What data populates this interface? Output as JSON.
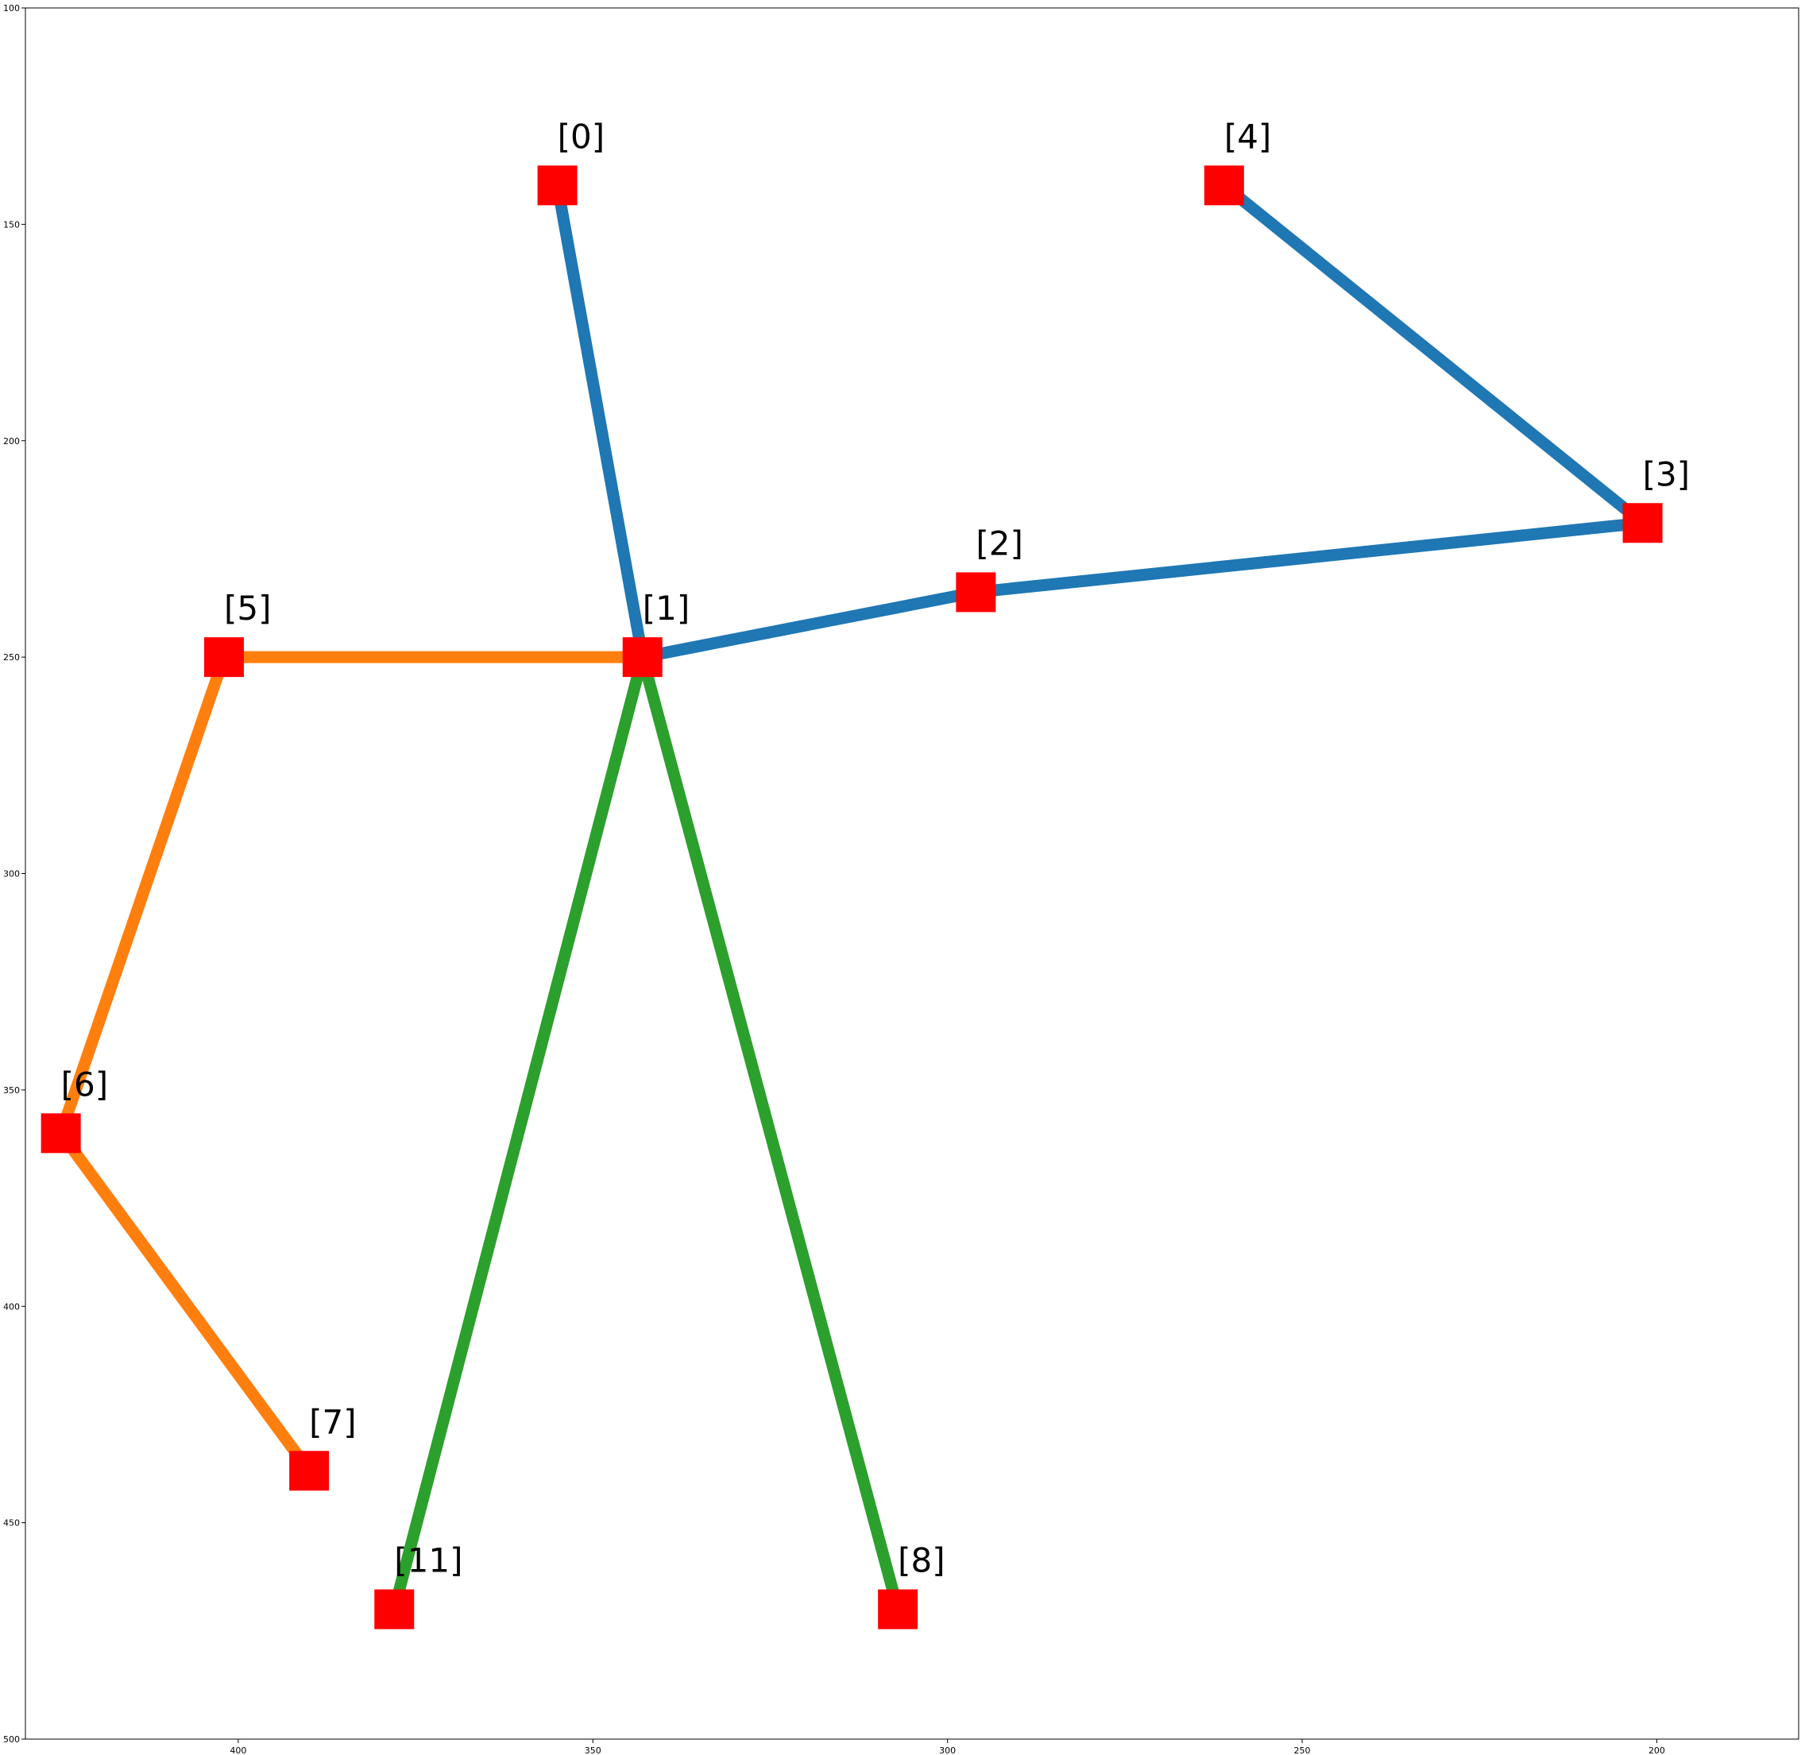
{
  "chart_data": {
    "type": "line",
    "title": "",
    "xlabel": "",
    "ylabel": "",
    "xlim": [
      430,
      180
    ],
    "ylim": [
      500,
      100
    ],
    "x_inverted": true,
    "y_inverted": true,
    "grid": false,
    "x_ticks": [
      400,
      350,
      300,
      250,
      200
    ],
    "y_ticks": [
      100,
      150,
      200,
      250,
      300,
      350,
      400,
      450,
      500
    ],
    "marker": {
      "shape": "square",
      "color": "#ff0000"
    },
    "points": [
      {
        "id": 0,
        "label": "[0]",
        "x": 355,
        "y": 141
      },
      {
        "id": 1,
        "label": "[1]",
        "x": 343,
        "y": 250
      },
      {
        "id": 2,
        "label": "[2]",
        "x": 296,
        "y": 235
      },
      {
        "id": 3,
        "label": "[3]",
        "x": 202,
        "y": 219
      },
      {
        "id": 4,
        "label": "[4]",
        "x": 261,
        "y": 141
      },
      {
        "id": 5,
        "label": "[5]",
        "x": 402,
        "y": 250
      },
      {
        "id": 6,
        "label": "[6]",
        "x": 425,
        "y": 360
      },
      {
        "id": 7,
        "label": "[7]",
        "x": 390,
        "y": 438
      },
      {
        "id": 8,
        "label": "[8]",
        "x": 307,
        "y": 470
      },
      {
        "id": 11,
        "label": "[11]",
        "x": 378,
        "y": 470
      }
    ],
    "series": [
      {
        "color": "#1f77b4",
        "path": [
          0,
          1,
          2,
          3,
          4
        ]
      },
      {
        "color": "#ff7f0e",
        "path": [
          1,
          5,
          6,
          7
        ]
      },
      {
        "color": "#2ca02c",
        "path": [
          11,
          1,
          8
        ]
      }
    ]
  }
}
